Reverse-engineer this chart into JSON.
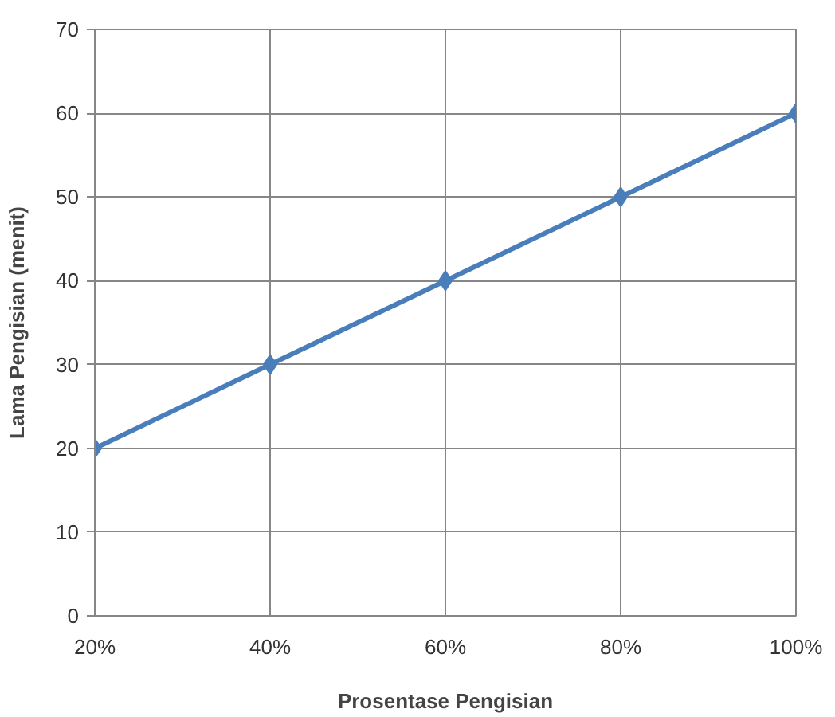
{
  "chart_data": {
    "type": "line",
    "xlabel": "Prosentase Pengisian",
    "ylabel": "Lama Pengisian (menit)",
    "categories": [
      "20%",
      "40%",
      "60%",
      "80%",
      "100%"
    ],
    "series": [
      {
        "color": "#4a7ebb",
        "values": [
          20,
          30,
          40,
          50,
          60
        ]
      }
    ],
    "ylim": [
      0,
      70
    ],
    "yticks": [
      0,
      10,
      20,
      30,
      40,
      50,
      60,
      70
    ],
    "grid": true,
    "marker": "diamond",
    "line_style": "solid"
  }
}
